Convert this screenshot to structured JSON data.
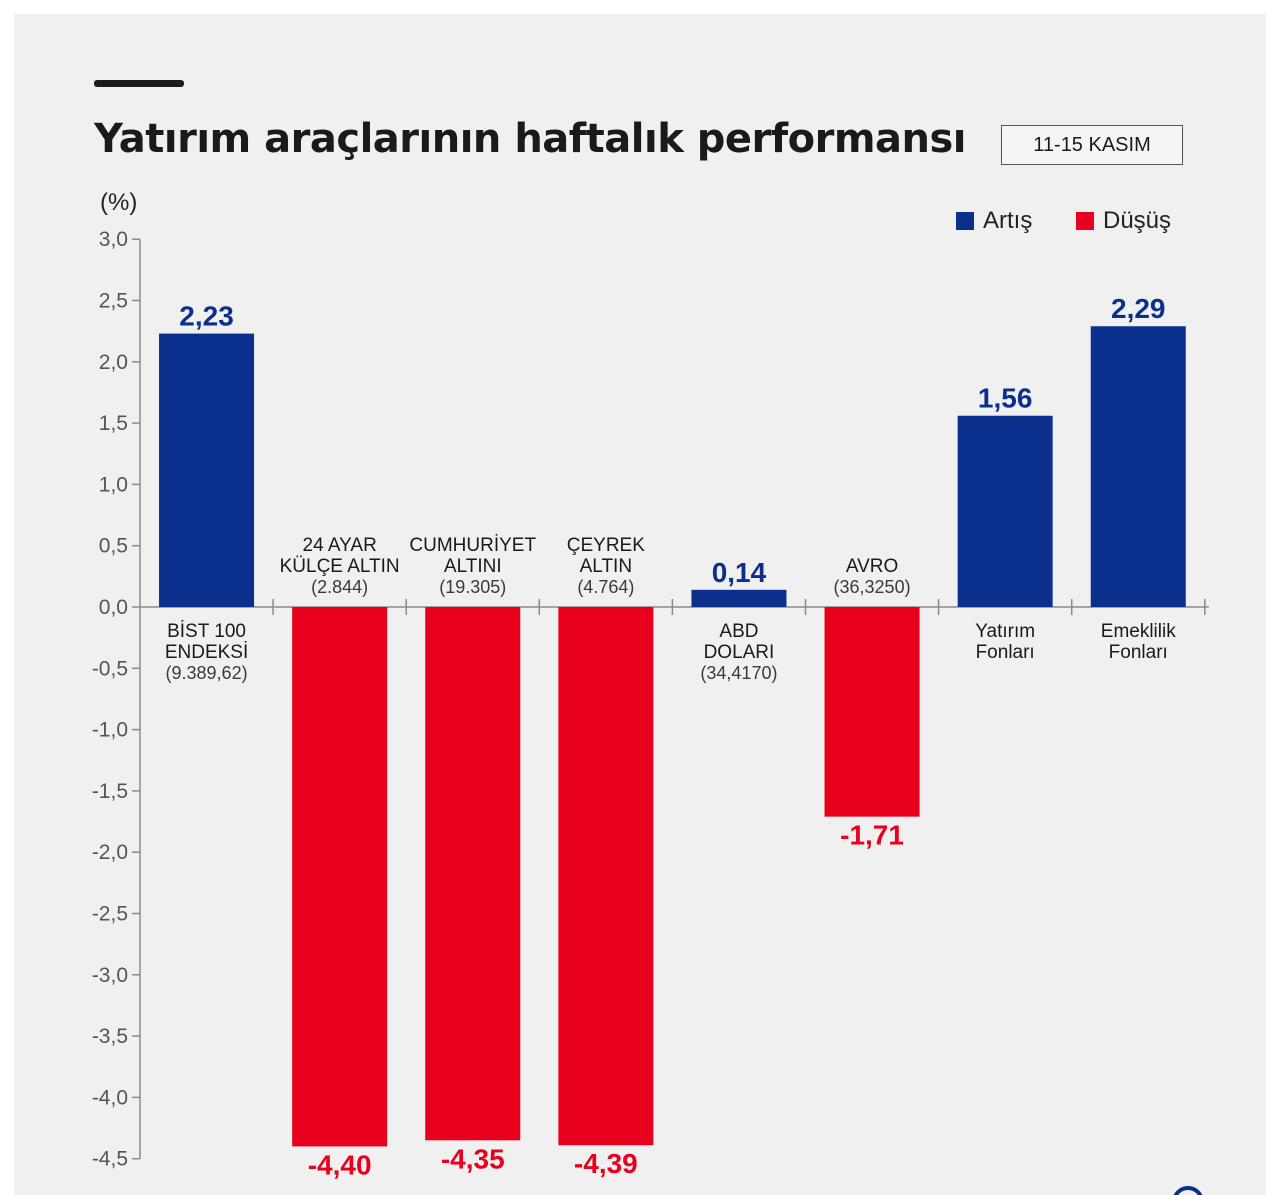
{
  "header": {
    "title": "Yatırım araçlarının haftalık performansı",
    "date_badge": "11-15 KASIM",
    "unit_label": "(%)"
  },
  "legend": [
    {
      "label": "Artış",
      "color": "#0b2f8c"
    },
    {
      "label": "Düşüş",
      "color": "#e8001c"
    }
  ],
  "chart_data": {
    "type": "bar",
    "ylim": [
      -4.5,
      3.0
    ],
    "yticks": [
      "3,0",
      "2,5",
      "2,0",
      "1,5",
      "1,0",
      "0,5",
      "0,0",
      "-0,5",
      "-1,0",
      "-1,5",
      "-2,0",
      "-2,5",
      "-3,0",
      "-3,5",
      "-4,0",
      "-4,5"
    ],
    "colors": {
      "positive": "#0b2f8c",
      "negative": "#e8001c"
    },
    "bars": [
      {
        "name": [
          "BİST 100",
          "ENDEKSİ"
        ],
        "level": "(9.389,62)",
        "value": 2.23,
        "label": "2,23"
      },
      {
        "name": [
          "24 AYAR",
          "KÜLÇE ALTIN"
        ],
        "level": "(2.844)",
        "value": -4.4,
        "label": "-4,40"
      },
      {
        "name": [
          "CUMHURİYET",
          "ALTINI"
        ],
        "level": "(19.305)",
        "value": -4.35,
        "label": "-4,35"
      },
      {
        "name": [
          "ÇEYREK",
          "ALTIN"
        ],
        "level": "(4.764)",
        "value": -4.39,
        "label": "-4,39"
      },
      {
        "name": [
          "ABD",
          "DOLARI"
        ],
        "level": "(34,4170)",
        "value": 0.14,
        "label": "0,14"
      },
      {
        "name": [
          "AVRO"
        ],
        "level": "(36,3250)",
        "value": -1.71,
        "label": "-1,71"
      },
      {
        "name": [
          "Yatırım",
          "Fonları"
        ],
        "level": "",
        "value": 1.56,
        "label": "1,56"
      },
      {
        "name": [
          "Emeklilik",
          "Fonları"
        ],
        "level": "",
        "value": 2.29,
        "label": "2,29"
      }
    ]
  }
}
